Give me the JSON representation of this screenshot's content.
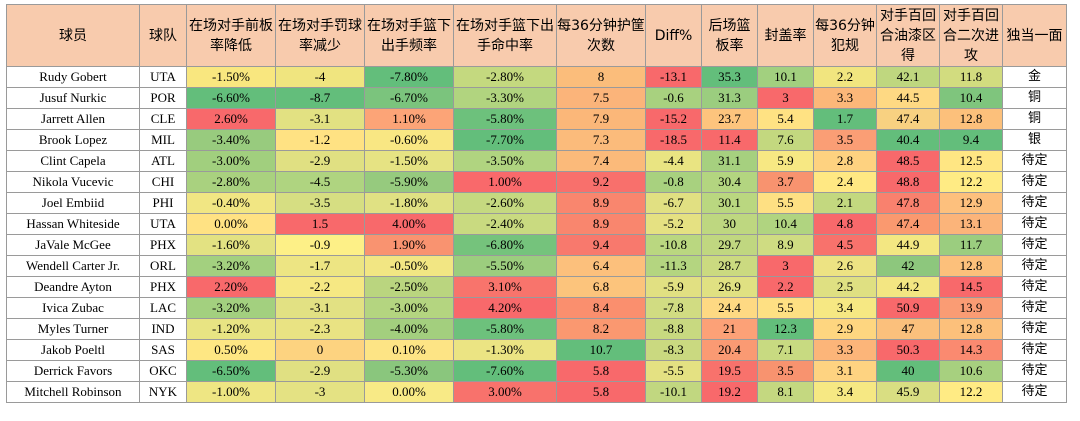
{
  "table": {
    "headers": [
      "球员",
      "球队",
      "在场对手前板率降低",
      "在场对手罚球率减少",
      "在场对手篮下出手频率",
      "在场对手篮下出手命中率",
      "每36分钟护筐次数",
      "Diff%",
      "后场篮板率",
      "封盖率",
      "每36分钟犯规",
      "对手百回合油漆区得",
      "对手百回合二次进攻",
      "独当一面"
    ],
    "rows": [
      [
        "Rudy Gobert",
        "UTA",
        "-1.50%",
        "-4",
        "-7.80%",
        "-2.80%",
        "8",
        "-13.1",
        "35.3",
        "10.1",
        "2.2",
        "42.1",
        "11.8",
        "金"
      ],
      [
        "Jusuf Nurkic",
        "POR",
        "-6.60%",
        "-8.7",
        "-6.70%",
        "-3.30%",
        "7.5",
        "-0.6",
        "31.3",
        "3",
        "3.3",
        "44.5",
        "10.4",
        "铜"
      ],
      [
        "Jarrett Allen",
        "CLE",
        "2.60%",
        "-3.1",
        "1.10%",
        "-5.80%",
        "7.9",
        "-15.2",
        "23.7",
        "5.4",
        "1.7",
        "47.4",
        "12.8",
        "铜"
      ],
      [
        "Brook Lopez",
        "MIL",
        "-3.40%",
        "-1.2",
        "-0.60%",
        "-7.70%",
        "7.3",
        "-18.5",
        "11.4",
        "7.6",
        "3.5",
        "40.4",
        "9.4",
        "银"
      ],
      [
        "Clint Capela",
        "ATL",
        "-3.00%",
        "-2.9",
        "-1.50%",
        "-3.50%",
        "7.4",
        "-4.4",
        "31.1",
        "5.9",
        "2.8",
        "48.5",
        "12.5",
        "待定"
      ],
      [
        "Nikola Vucevic",
        "CHI",
        "-2.80%",
        "-4.5",
        "-5.90%",
        "1.00%",
        "9.2",
        "-0.8",
        "30.4",
        "3.7",
        "2.4",
        "48.8",
        "12.2",
        "待定"
      ],
      [
        "Joel Embiid",
        "PHI",
        "-0.40%",
        "-3.5",
        "-1.80%",
        "-2.60%",
        "8.9",
        "-6.7",
        "30.1",
        "5.5",
        "2.1",
        "47.8",
        "12.9",
        "待定"
      ],
      [
        "Hassan Whiteside",
        "UTA",
        "0.00%",
        "1.5",
        "4.00%",
        "-2.40%",
        "8.9",
        "-5.2",
        "30",
        "10.4",
        "4.8",
        "47.4",
        "13.1",
        "待定"
      ],
      [
        "JaVale McGee",
        "PHX",
        "-1.60%",
        "-0.9",
        "1.90%",
        "-6.80%",
        "9.4",
        "-10.8",
        "29.7",
        "8.9",
        "4.5",
        "44.9",
        "11.7",
        "待定"
      ],
      [
        "Wendell Carter Jr.",
        "ORL",
        "-3.20%",
        "-1.7",
        "-0.50%",
        "-5.50%",
        "6.4",
        "-11.3",
        "28.7",
        "3",
        "2.6",
        "42",
        "12.8",
        "待定"
      ],
      [
        "Deandre Ayton",
        "PHX",
        "2.20%",
        "-2.2",
        "-2.50%",
        "3.10%",
        "6.8",
        "-5.9",
        "26.9",
        "2.2",
        "2.5",
        "44.2",
        "14.5",
        "待定"
      ],
      [
        "Ivica Zubac",
        "LAC",
        "-3.20%",
        "-3.1",
        "-3.00%",
        "4.20%",
        "8.4",
        "-7.8",
        "24.4",
        "5.5",
        "3.4",
        "50.9",
        "13.9",
        "待定"
      ],
      [
        "Myles Turner",
        "IND",
        "-1.20%",
        "-2.3",
        "-4.00%",
        "-5.80%",
        "8.2",
        "-8.8",
        "21",
        "12.3",
        "2.9",
        "47",
        "12.8",
        "待定"
      ],
      [
        "Jakob Poeltl",
        "SAS",
        "0.50%",
        "0",
        "0.10%",
        "-1.30%",
        "10.7",
        "-8.3",
        "20.4",
        "7.1",
        "3.3",
        "50.3",
        "14.3",
        "待定"
      ],
      [
        "Derrick Favors",
        "OKC",
        "-6.50%",
        "-2.9",
        "-5.30%",
        "-7.60%",
        "5.8",
        "-5.5",
        "19.5",
        "3.5",
        "3.1",
        "40",
        "10.6",
        "待定"
      ],
      [
        "Mitchell Robinson",
        "NYK",
        "-1.00%",
        "-3",
        "0.00%",
        "3.00%",
        "5.8",
        "-10.1",
        "19.2",
        "8.1",
        "3.4",
        "45.9",
        "12.2",
        "待定"
      ]
    ],
    "cell_colors": [
      [
        "#ffffff",
        "#ffffff",
        "#f9e77f",
        "#f0e57f",
        "#63be7b",
        "#c4d97f",
        "#fbbd7b",
        "#f8696b",
        "#63be7b",
        "#a2d07f",
        "#f1e57f",
        "#bfd77f",
        "#d2dc7f",
        "#ffffff"
      ],
      [
        "#ffffff",
        "#ffffff",
        "#63be7b",
        "#63be7b",
        "#7bc47d",
        "#b1d47f",
        "#fbb47a",
        "#a8d17f",
        "#9bcd7f",
        "#f8696b",
        "#fcb779",
        "#fed983",
        "#7fc57d",
        "#ffffff"
      ],
      [
        "#ffffff",
        "#ffffff",
        "#f8696b",
        "#e2e182",
        "#fca477",
        "#6dc17c",
        "#fbb779",
        "#f8696b",
        "#fdc47d",
        "#ffe283",
        "#63be7b",
        "#f8d181",
        "#fcc07b",
        "#ffffff"
      ],
      [
        "#ffffff",
        "#ffffff",
        "#98cb7e",
        "#ffe283",
        "#f9e783",
        "#63be7b",
        "#fbbb7b",
        "#f8696b",
        "#f8696b",
        "#c3d87f",
        "#fa9e75",
        "#63be7b",
        "#63be7b",
        "#ffffff"
      ],
      [
        "#ffffff",
        "#ffffff",
        "#a1cf7e",
        "#e0e082",
        "#e6e383",
        "#b0d480",
        "#fbba7a",
        "#e9e482",
        "#a6d07f",
        "#f7e883",
        "#fed280",
        "#f8696b",
        "#ffe683",
        "#ffffff"
      ],
      [
        "#ffffff",
        "#ffffff",
        "#a9d17f",
        "#afd480",
        "#96ca7e",
        "#f9696b",
        "#f8706c",
        "#a8d17f",
        "#b3d580",
        "#f8936f",
        "#ffe883",
        "#f8696b",
        "#ffeb84",
        "#ffffff"
      ],
      [
        "#ffffff",
        "#ffffff",
        "#f1e683",
        "#d6de82",
        "#e0e183",
        "#c5d980",
        "#f9866e",
        "#e1e082",
        "#bad780",
        "#fee083",
        "#c3d87f",
        "#f9816e",
        "#fdc07d",
        "#ffffff"
      ],
      [
        "#ffffff",
        "#ffffff",
        "#ffe283",
        "#f8696b",
        "#f8696b",
        "#c9da80",
        "#f9866e",
        "#e5e182",
        "#bed780",
        "#b0d480",
        "#f8696b",
        "#fa996f",
        "#fbb47a",
        "#ffffff"
      ],
      [
        "#ffffff",
        "#ffffff",
        "#e3e282",
        "#fdf087",
        "#f99370",
        "#75c37c",
        "#f8796d",
        "#bad780",
        "#c0d780",
        "#cfdc82",
        "#f8726c",
        "#f3e782",
        "#9bcd7f",
        "#ffffff"
      ],
      [
        "#ffffff",
        "#ffffff",
        "#a3d07f",
        "#ede583",
        "#f2e683",
        "#9ccd7e",
        "#fcc07c",
        "#b4d580",
        "#cbda80",
        "#f8696b",
        "#ede383",
        "#8dc77d",
        "#fcc07b",
        "#ffffff"
      ],
      [
        "#ffffff",
        "#ffffff",
        "#f8696b",
        "#f6e883",
        "#bad57f",
        "#f8746c",
        "#fcc47c",
        "#e1e082",
        "#e0e182",
        "#f8696b",
        "#dfe082",
        "#f3e682",
        "#f8696b",
        "#ffffff"
      ],
      [
        "#ffffff",
        "#ffffff",
        "#a3d07f",
        "#e2e183",
        "#b4d580",
        "#f8696b",
        "#fa8f6e",
        "#d1dc82",
        "#fed983",
        "#fee083",
        "#f6e883",
        "#f8696b",
        "#fa9c74",
        "#ffffff"
      ],
      [
        "#ffffff",
        "#ffffff",
        "#e8e483",
        "#e9e383",
        "#a3cf7e",
        "#6dc17c",
        "#fa9870",
        "#c8d980",
        "#fca177",
        "#63be7b",
        "#fed680",
        "#fbc07c",
        "#fcc07b",
        "#ffffff"
      ],
      [
        "#ffffff",
        "#ffffff",
        "#fee783",
        "#fdd380",
        "#fde485",
        "#ebe483",
        "#63be7b",
        "#cad980",
        "#fa9a73",
        "#c8da81",
        "#fcb579",
        "#f8696b",
        "#fa8a70",
        "#ffffff"
      ],
      [
        "#ffffff",
        "#ffffff",
        "#63be7b",
        "#e0e082",
        "#8ac67d",
        "#63be7b",
        "#f8696b",
        "#e4e182",
        "#f8726c",
        "#f8936f",
        "#fed381",
        "#63be7b",
        "#a7d07f",
        "#ffffff"
      ],
      [
        "#ffffff",
        "#ffffff",
        "#eee683",
        "#e4e283",
        "#f8ea86",
        "#f8726c",
        "#f8696b",
        "#c1d780",
        "#f8696b",
        "#c4d880",
        "#f6e883",
        "#d9de82",
        "#ffeb84",
        "#ffffff"
      ]
    ]
  }
}
